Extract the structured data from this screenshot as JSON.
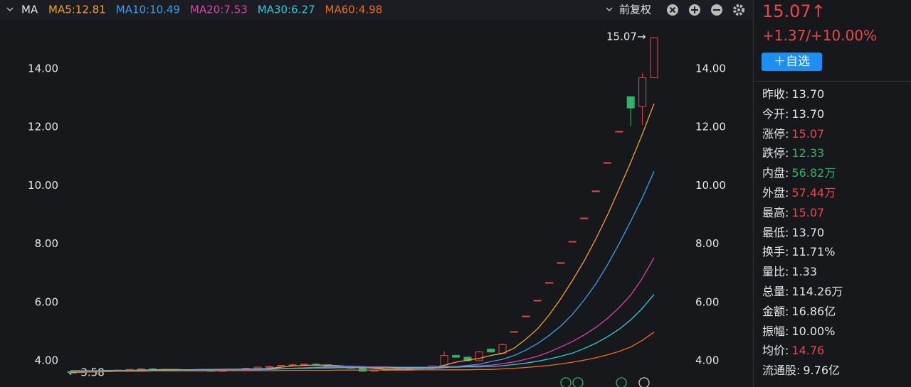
{
  "chart_data": {
    "type": "candlestick",
    "indicator": "MA",
    "adjust": "前复权",
    "series": [
      {
        "name": "MA5:12.81",
        "color": "#f0a030",
        "values": [
          3.6,
          3.61,
          3.62,
          3.63,
          3.64,
          3.66,
          3.68,
          3.69,
          3.7,
          3.7,
          3.69,
          3.68,
          3.67,
          3.66,
          3.67,
          3.68,
          3.71,
          3.74,
          3.78,
          3.82,
          3.84,
          3.85,
          3.85,
          3.83,
          3.8,
          3.77,
          3.74,
          3.71,
          3.7,
          3.71,
          3.72,
          3.75,
          3.85,
          3.95,
          4.02,
          4.08,
          4.18,
          4.25,
          4.43,
          4.74,
          5.09,
          5.57,
          6.13,
          6.75,
          7.42,
          8.17,
          8.99,
          9.89,
          10.8,
          11.77,
          12.81
        ]
      },
      {
        "name": "MA10:10.49",
        "color": "#3a9ef0",
        "values": [
          3.62,
          3.62,
          3.63,
          3.63,
          3.64,
          3.65,
          3.66,
          3.67,
          3.68,
          3.68,
          3.68,
          3.68,
          3.68,
          3.68,
          3.68,
          3.68,
          3.69,
          3.7,
          3.72,
          3.74,
          3.76,
          3.78,
          3.8,
          3.81,
          3.81,
          3.8,
          3.78,
          3.76,
          3.75,
          3.74,
          3.73,
          3.73,
          3.76,
          3.8,
          3.84,
          3.88,
          3.97,
          4.05,
          4.18,
          4.36,
          4.59,
          4.87,
          5.19,
          5.59,
          6.08,
          6.63,
          7.28,
          8.01,
          8.78,
          9.59,
          10.49
        ]
      },
      {
        "name": "MA20:7.53",
        "color": "#e040b0",
        "values": [
          3.64,
          3.64,
          3.64,
          3.65,
          3.65,
          3.66,
          3.66,
          3.67,
          3.67,
          3.68,
          3.68,
          3.68,
          3.69,
          3.69,
          3.7,
          3.7,
          3.71,
          3.72,
          3.73,
          3.74,
          3.75,
          3.76,
          3.77,
          3.78,
          3.79,
          3.79,
          3.79,
          3.79,
          3.78,
          3.78,
          3.78,
          3.78,
          3.79,
          3.8,
          3.81,
          3.83,
          3.85,
          3.9,
          3.96,
          4.05,
          4.15,
          4.3,
          4.47,
          4.66,
          4.88,
          5.14,
          5.45,
          5.82,
          6.25,
          6.83,
          7.53
        ]
      },
      {
        "name": "MA30:6.27",
        "color": "#30c8d8",
        "values": [
          3.66,
          3.66,
          3.66,
          3.67,
          3.67,
          3.67,
          3.68,
          3.68,
          3.68,
          3.69,
          3.69,
          3.7,
          3.7,
          3.71,
          3.71,
          3.72,
          3.72,
          3.73,
          3.73,
          3.74,
          3.74,
          3.75,
          3.75,
          3.76,
          3.76,
          3.76,
          3.76,
          3.76,
          3.77,
          3.77,
          3.77,
          3.77,
          3.78,
          3.78,
          3.79,
          3.79,
          3.8,
          3.83,
          3.87,
          3.92,
          3.98,
          4.06,
          4.15,
          4.26,
          4.42,
          4.6,
          4.82,
          5.08,
          5.4,
          5.8,
          6.27
        ]
      },
      {
        "name": "MA60:4.98",
        "color": "#f06a20",
        "values": [
          3.64,
          3.64,
          3.64,
          3.64,
          3.64,
          3.64,
          3.64,
          3.65,
          3.65,
          3.65,
          3.65,
          3.65,
          3.65,
          3.66,
          3.66,
          3.66,
          3.66,
          3.66,
          3.67,
          3.67,
          3.67,
          3.67,
          3.67,
          3.68,
          3.68,
          3.68,
          3.68,
          3.68,
          3.68,
          3.68,
          3.69,
          3.69,
          3.69,
          3.69,
          3.69,
          3.7,
          3.7,
          3.72,
          3.74,
          3.77,
          3.8,
          3.84,
          3.89,
          3.95,
          4.02,
          4.1,
          4.2,
          4.32,
          4.47,
          4.7,
          4.98
        ]
      }
    ],
    "open": [
      3.62,
      3.6,
      3.62,
      3.64,
      3.65,
      3.68,
      3.7,
      3.72,
      3.7,
      3.69,
      3.68,
      3.67,
      3.66,
      3.65,
      3.66,
      3.7,
      3.74,
      3.78,
      3.8,
      3.84,
      3.86,
      3.88,
      3.86,
      3.82,
      3.78,
      3.74,
      3.64,
      3.68,
      3.7,
      3.72,
      3.74,
      3.78,
      3.82,
      4.18,
      4.12,
      4.0,
      4.4,
      4.26,
      5.0,
      5.53,
      6.07,
      6.68,
      7.36,
      8.09,
      8.89,
      9.82,
      10.79,
      11.86,
      13.05,
      12.71,
      13.7
    ],
    "high": [
      3.64,
      3.63,
      3.66,
      3.67,
      3.7,
      3.72,
      3.74,
      3.75,
      3.72,
      3.71,
      3.7,
      3.7,
      3.69,
      3.68,
      3.72,
      3.76,
      3.8,
      3.83,
      3.86,
      3.9,
      3.9,
      3.92,
      3.88,
      3.84,
      3.8,
      3.76,
      3.7,
      3.72,
      3.74,
      3.76,
      3.8,
      3.84,
      4.32,
      4.22,
      4.16,
      4.34,
      4.42,
      4.6,
      5.0,
      5.53,
      6.07,
      6.68,
      7.36,
      8.09,
      8.89,
      9.82,
      10.79,
      11.86,
      13.05,
      13.85,
      15.07
    ],
    "low": [
      3.58,
      3.59,
      3.6,
      3.62,
      3.63,
      3.66,
      3.68,
      3.69,
      3.67,
      3.66,
      3.65,
      3.64,
      3.63,
      3.62,
      3.64,
      3.68,
      3.72,
      3.75,
      3.78,
      3.8,
      3.82,
      3.84,
      3.8,
      3.76,
      3.72,
      3.62,
      3.62,
      3.65,
      3.67,
      3.7,
      3.72,
      3.76,
      3.8,
      4.1,
      3.98,
      3.98,
      4.28,
      4.22,
      5.0,
      5.53,
      6.07,
      6.68,
      7.36,
      8.09,
      8.89,
      9.82,
      10.79,
      11.86,
      12.03,
      12.08,
      13.7
    ],
    "close": [
      3.6,
      3.62,
      3.64,
      3.65,
      3.68,
      3.7,
      3.72,
      3.7,
      3.69,
      3.68,
      3.67,
      3.66,
      3.65,
      3.66,
      3.7,
      3.74,
      3.78,
      3.8,
      3.84,
      3.86,
      3.88,
      3.86,
      3.82,
      3.78,
      3.74,
      3.64,
      3.68,
      3.7,
      3.72,
      3.74,
      3.78,
      3.82,
      4.18,
      4.12,
      4.0,
      4.3,
      4.3,
      4.55,
      5.0,
      5.53,
      6.07,
      6.68,
      7.36,
      8.09,
      8.89,
      9.82,
      10.79,
      11.86,
      12.66,
      13.7,
      15.07
    ],
    "up_color": "#e8474c",
    "down_color": "#2fb36b",
    "ylim": [
      3.1,
      15.68
    ],
    "yticks": [
      {
        "value": 4,
        "label": "4.00"
      },
      {
        "value": 6,
        "label": "6.00"
      },
      {
        "value": 8,
        "label": "8.00"
      },
      {
        "value": 10,
        "label": "10.00"
      },
      {
        "value": 12,
        "label": "12.00"
      },
      {
        "value": 14,
        "label": "14.00"
      }
    ],
    "grid": false,
    "annotations": {
      "high": "15.07→",
      "low": "← 3.58"
    }
  },
  "quote": {
    "price": "15.07↑",
    "change": "+1.37/+10.00%",
    "button": "＋自选",
    "rows": [
      {
        "label": "昨收:",
        "value": "13.70",
        "color": "#e6e6e6"
      },
      {
        "label": "今开:",
        "value": "13.70",
        "color": "#e6e6e6"
      },
      {
        "label": "涨停:",
        "value": "15.07",
        "color": "#e8474c"
      },
      {
        "label": "跌停:",
        "value": "12.33",
        "color": "#2fb36b"
      },
      {
        "label": "内盘:",
        "value": "56.82万",
        "color": "#2fb36b"
      },
      {
        "label": "外盘:",
        "value": "57.44万",
        "color": "#e8474c"
      },
      {
        "label": "最高:",
        "value": "15.07",
        "color": "#e8474c"
      },
      {
        "label": "最低:",
        "value": "13.70",
        "color": "#e6e6e6"
      },
      {
        "label": "换手:",
        "value": "11.71%",
        "color": "#e6e6e6"
      },
      {
        "label": "量比:",
        "value": "1.33",
        "color": "#e6e6e6"
      },
      {
        "label": "总量:",
        "value": "114.26万",
        "color": "#e6e6e6"
      },
      {
        "label": "金额:",
        "value": "16.86亿",
        "color": "#e6e6e6"
      },
      {
        "label": "振幅:",
        "value": "10.00%",
        "color": "#e6e6e6"
      },
      {
        "label": "均价:",
        "value": "14.76",
        "color": "#e8474c"
      },
      {
        "label": "流通股:",
        "value": "9.76亿",
        "color": "#e6e6e6"
      }
    ]
  }
}
